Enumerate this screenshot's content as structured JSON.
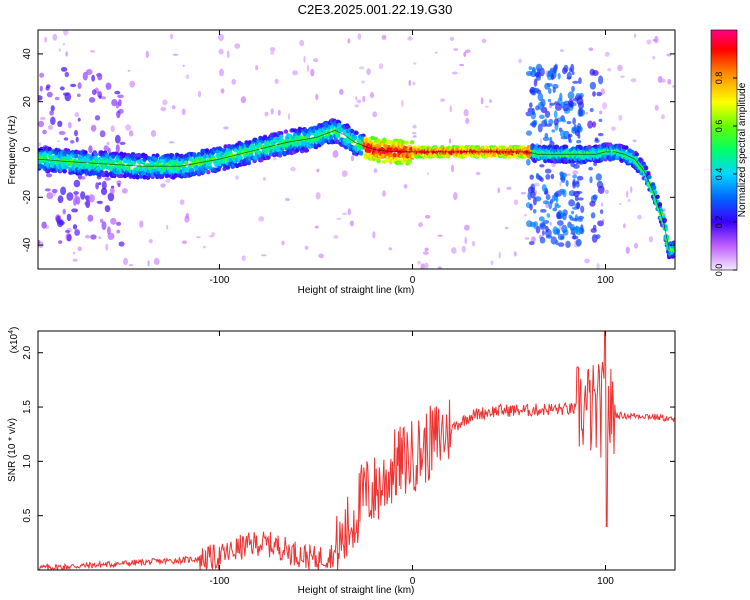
{
  "title": "C2E3.2025.001.22.19.G30",
  "chart_data": [
    {
      "type": "heatmap",
      "xlabel": "Height of straight line (km)",
      "ylabel": "Frequency (Hz)",
      "xlim": [
        -194,
        136
      ],
      "ylim": [
        -50,
        50
      ],
      "xticks": [
        -100,
        0,
        100
      ],
      "yticks": [
        -40,
        -20,
        0,
        20,
        40
      ],
      "colorbar": {
        "label": "Normalized spectral amplitude",
        "range": [
          0,
          1
        ],
        "ticks": [
          0.0,
          0.2,
          0.4,
          0.6,
          0.8
        ]
      },
      "ridge": {
        "x": [
          -194,
          -180,
          -160,
          -140,
          -120,
          -100,
          -80,
          -65,
          -50,
          -40,
          -35,
          -30,
          -20,
          -10,
          0,
          20,
          40,
          48,
          50,
          55,
          60,
          65,
          70,
          80,
          90,
          95,
          100,
          105,
          110,
          115,
          120,
          125,
          130,
          133
        ],
        "freq": [
          -4,
          -5,
          -6,
          -7,
          -7,
          -4,
          0,
          3,
          5,
          8,
          6,
          3,
          0,
          -1,
          -1,
          -1,
          -1,
          -1,
          -1,
          -1,
          -1,
          -2,
          -2,
          -2,
          -2,
          -2,
          -1,
          -1,
          -2,
          -4,
          -9,
          -18,
          -30,
          -42
        ]
      }
    },
    {
      "type": "line",
      "xlabel": "Height of straight line (km)",
      "ylabel": "SNR (10 * v/v)",
      "y_multiplier": "(x10",
      "y_multiplier_exp": "4",
      "y_multiplier_close": ")",
      "xlim": [
        -194,
        136
      ],
      "ylim": [
        0,
        2.2
      ],
      "xticks": [
        -100,
        0,
        100
      ],
      "yticks": [
        0.5,
        1.0,
        1.5,
        2.0
      ],
      "series": [
        {
          "color": "#ee3333",
          "x": [
            -194,
            -180,
            -160,
            -140,
            -120,
            -100,
            -90,
            -80,
            -70,
            -60,
            -50,
            -40,
            -35,
            -30,
            -25,
            -20,
            -15,
            -10,
            -5,
            0,
            5,
            10,
            20,
            30,
            40,
            50,
            60,
            70,
            80,
            85,
            90,
            95,
            100,
            102,
            105,
            110,
            120,
            130,
            136
          ],
          "values": [
            0.02,
            0.03,
            0.05,
            0.07,
            0.09,
            0.12,
            0.2,
            0.25,
            0.22,
            0.15,
            0.1,
            0.15,
            0.3,
            0.5,
            0.7,
            0.72,
            0.8,
            0.95,
            1.0,
            1.05,
            1.1,
            1.18,
            1.3,
            1.42,
            1.46,
            1.47,
            1.47,
            1.48,
            1.48,
            1.48,
            1.5,
            1.45,
            1.5,
            1.45,
            1.43,
            1.42,
            1.42,
            1.4,
            1.38
          ]
        }
      ]
    }
  ]
}
